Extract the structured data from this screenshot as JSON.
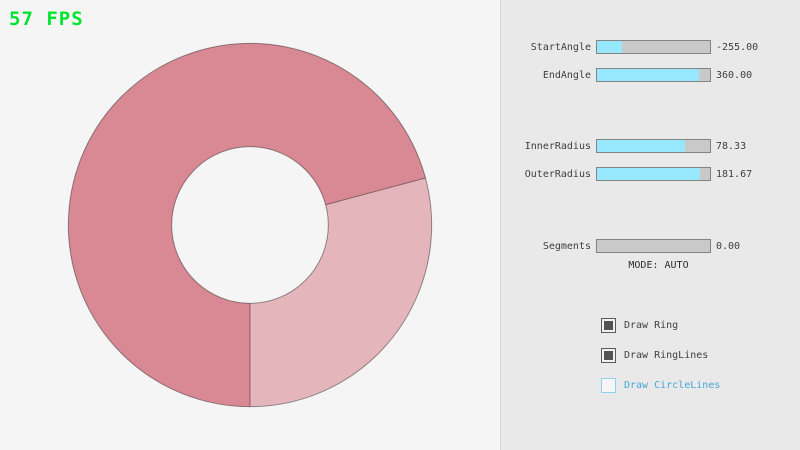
{
  "fps_label": "57 FPS",
  "colors": {
    "fps_green": "#00e430",
    "ring_single_pass": "#e5b5bc",
    "ring_double_pass": "#d98994",
    "ring_outline": "rgba(0,0,0,0.40)",
    "slider_fill": "#97e8ff",
    "slider_base": "#c9c9c9",
    "slider_border": "#838383",
    "panel_bg": "#e9e9e9",
    "accent_blue": "#49a7d6"
  },
  "ring": {
    "start_angle": -255,
    "end_angle": 360,
    "inner_radius": 78.33,
    "outer_radius": 181.67,
    "sectors": [
      {
        "from_deg": -15,
        "to_deg": 90,
        "color": "#e5b5bc"
      },
      {
        "from_deg": 90,
        "to_deg": 345,
        "color": "#d98994"
      }
    ],
    "line_angles": [
      -15,
      90
    ]
  },
  "panel": {
    "sliders": [
      {
        "label": "StartAngle",
        "value": "-255.00",
        "fill_pct": 21.7
      },
      {
        "label": "EndAngle",
        "value": "360.00",
        "fill_pct": 90.0
      },
      {
        "label": "InnerRadius",
        "value": "78.33",
        "fill_pct": 78.3
      },
      {
        "label": "OuterRadius",
        "value": "181.67",
        "fill_pct": 90.8
      },
      {
        "label": "Segments",
        "value": "0.00",
        "fill_pct": 0
      }
    ],
    "mode_label": "MODE: AUTO",
    "checkboxes": [
      {
        "label": "Draw Ring",
        "checked": true
      },
      {
        "label": "Draw RingLines",
        "checked": true
      },
      {
        "label": "Draw CircleLines",
        "checked": false
      }
    ]
  }
}
